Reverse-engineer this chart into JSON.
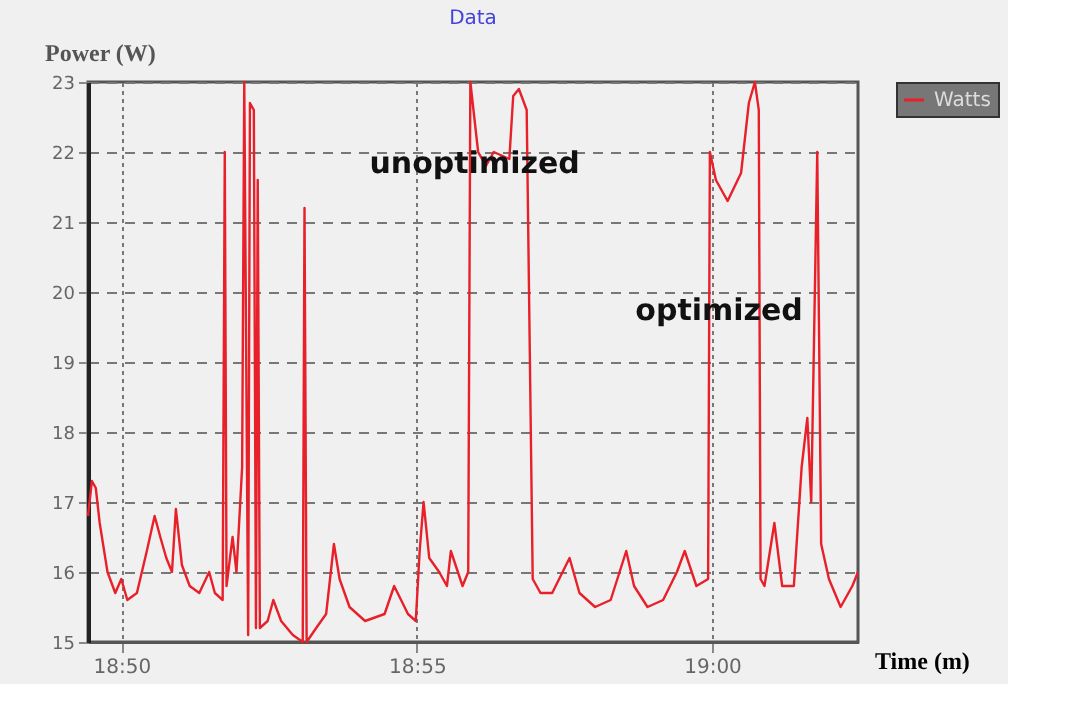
{
  "chart_data": {
    "type": "line",
    "title": "Data",
    "xlabel": "Time (m)",
    "ylabel": "Power (W)",
    "x": [
      18.8239,
      18.825,
      18.8261,
      18.8272,
      18.8294,
      18.8316,
      18.8333,
      18.835,
      18.8377,
      18.8405,
      18.8427,
      18.8443,
      18.846,
      18.8476,
      18.8487,
      18.8504,
      18.8526,
      18.8553,
      18.8581,
      18.8597,
      18.8619,
      18.8625,
      18.863,
      18.8647,
      18.8658,
      18.8674,
      18.868,
      18.8691,
      18.8696,
      18.8707,
      18.8713,
      18.8718,
      18.8724,
      18.8746,
      18.8762,
      18.8784,
      18.8817,
      18.8845,
      18.885,
      18.8856,
      18.8883,
      18.8911,
      18.8933,
      18.8949,
      18.8977,
      18.9021,
      18.9076,
      18.9103,
      18.9142,
      18.9164,
      18.9175,
      18.9186,
      18.9202,
      18.923,
      18.9252,
      18.9263,
      18.9296,
      18.9312,
      18.9318,
      18.934,
      18.9362,
      18.9384,
      18.9428,
      18.9439,
      18.9455,
      18.9477,
      18.9494,
      18.9516,
      18.9549,
      18.9598,
      18.9626,
      18.967,
      18.9714,
      18.9758,
      18.978,
      18.9818,
      18.9862,
      18.9901,
      18.9923,
      18.9956,
      18.9989,
      18.9994,
      19.0011,
      19.0044,
      19.0082,
      19.0104,
      19.0121,
      19.0132,
      19.0137,
      19.0148,
      19.0176,
      19.0198,
      19.0231,
      19.0253,
      19.0269,
      19.028,
      19.0297,
      19.0308,
      19.033,
      19.0363,
      19.0396,
      19.0412
    ],
    "series": [
      {
        "name": "Watts",
        "color": "#e8202a",
        "values": [
          16.8,
          17.3,
          17.2,
          16.7,
          16.0,
          15.7,
          15.9,
          15.6,
          15.7,
          16.3,
          16.8,
          16.5,
          16.2,
          16.0,
          16.9,
          16.1,
          15.8,
          15.7,
          16.0,
          15.7,
          15.6,
          22.0,
          15.8,
          16.5,
          16.0,
          17.5,
          23.0,
          15.1,
          22.7,
          22.6,
          15.2,
          21.6,
          15.2,
          15.3,
          15.6,
          15.3,
          15.1,
          15.0,
          21.2,
          15.0,
          15.2,
          15.4,
          16.4,
          15.9,
          15.5,
          15.3,
          15.4,
          15.8,
          15.4,
          15.3,
          16.3,
          17.0,
          16.2,
          16.0,
          15.8,
          16.3,
          15.8,
          16.0,
          23.0,
          22.0,
          21.8,
          22.0,
          21.9,
          22.8,
          22.9,
          22.6,
          15.9,
          15.7,
          15.7,
          16.2,
          15.7,
          15.5,
          15.6,
          16.3,
          15.8,
          15.5,
          15.6,
          16.0,
          16.3,
          15.8,
          15.9,
          22.0,
          21.6,
          21.3,
          21.7,
          22.7,
          23.0,
          22.6,
          15.9,
          15.8,
          16.7,
          15.8,
          15.8,
          17.5,
          18.2,
          17.0,
          22.0,
          16.4,
          15.9,
          15.5,
          15.8,
          16.0
        ]
      }
    ],
    "xlim": [
      18.8239,
      19.0412
    ],
    "xticks": [
      {
        "value": 18.8333,
        "label": "18:50"
      },
      {
        "value": 18.9167,
        "label": "18:55"
      },
      {
        "value": 19.0,
        "label": "19:00"
      }
    ],
    "ylim": [
      15,
      23
    ],
    "yticks": [
      15,
      16,
      17,
      18,
      19,
      20,
      21,
      22,
      23
    ],
    "grid": true,
    "legend": "top right",
    "annotations": [
      {
        "text": "unoptimized",
        "x": 18.933,
        "y": 21.85
      },
      {
        "text": "optimized",
        "x": 19.002,
        "y": 19.75
      }
    ]
  }
}
